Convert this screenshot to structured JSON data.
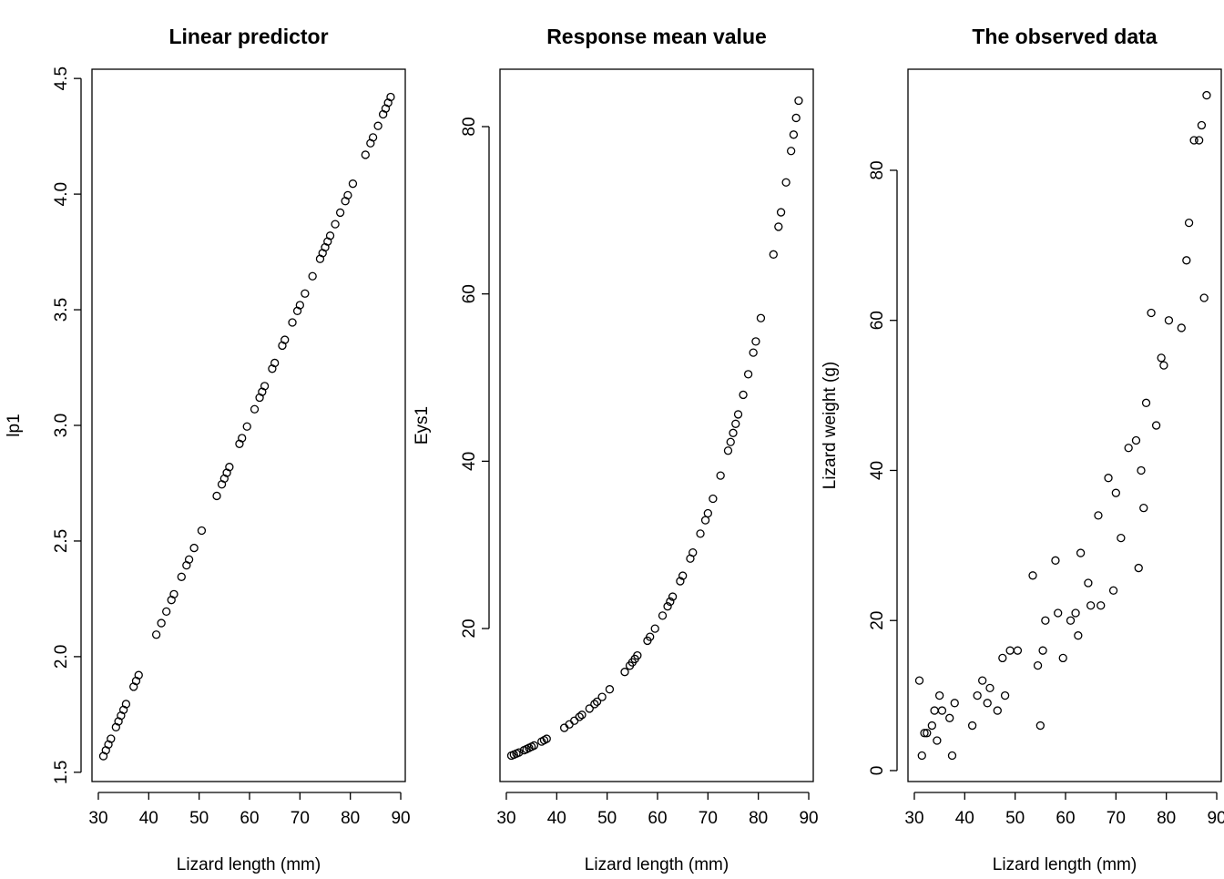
{
  "chart_data": [
    {
      "type": "scatter",
      "title": "Linear predictor",
      "xlabel": "Lizard length (mm)",
      "ylabel": "lp1",
      "x": [
        31,
        31.5,
        32,
        32.5,
        33.5,
        34,
        34.5,
        35,
        35.5,
        37,
        37.5,
        38,
        41.5,
        42.5,
        43.5,
        44.5,
        45,
        46.5,
        47.5,
        48,
        49,
        50.5,
        53.5,
        54.5,
        55,
        55.5,
        56,
        58,
        58.5,
        59.5,
        61,
        62,
        62.5,
        63,
        64.5,
        65,
        66.5,
        67,
        68.5,
        69.5,
        70,
        71,
        72.5,
        74,
        74.5,
        75,
        75.5,
        76,
        77,
        78,
        79,
        79.5,
        80.5,
        83,
        84,
        84.5,
        85.5,
        86.5,
        87,
        87.5,
        88
      ],
      "values": [
        1.57,
        1.595,
        1.62,
        1.645,
        1.695,
        1.72,
        1.745,
        1.77,
        1.795,
        1.87,
        1.895,
        1.92,
        2.095,
        2.145,
        2.195,
        2.245,
        2.27,
        2.345,
        2.395,
        2.42,
        2.47,
        2.545,
        2.695,
        2.745,
        2.77,
        2.795,
        2.82,
        2.92,
        2.945,
        2.995,
        3.07,
        3.12,
        3.145,
        3.17,
        3.245,
        3.27,
        3.345,
        3.37,
        3.445,
        3.495,
        3.52,
        3.57,
        3.645,
        3.72,
        3.745,
        3.77,
        3.795,
        3.82,
        3.87,
        3.92,
        3.97,
        3.995,
        4.045,
        4.17,
        4.22,
        4.245,
        4.295,
        4.345,
        4.37,
        4.395,
        4.42
      ],
      "xlim": [
        28.74,
        90.9
      ],
      "ylim": [
        1.46,
        4.54
      ],
      "xticks": [
        30,
        40,
        50,
        60,
        70,
        80,
        90
      ],
      "yticks": [
        1.5,
        {
          "value": 2,
          "label": "2.0"
        },
        2.5,
        {
          "value": 3,
          "label": "3.0"
        },
        3.5,
        {
          "value": 4,
          "label": "4.0"
        },
        4.5
      ]
    },
    {
      "type": "scatter",
      "title": "Response mean value",
      "xlabel": "Lizard length (mm)",
      "ylabel": "Eys1",
      "x": [
        31,
        31.5,
        32,
        32.5,
        33.5,
        34,
        34.5,
        35,
        35.5,
        37,
        37.5,
        38,
        41.5,
        42.5,
        43.5,
        44.5,
        45,
        46.5,
        47.5,
        48,
        49,
        50.5,
        53.5,
        54.5,
        55,
        55.5,
        56,
        58,
        58.5,
        59.5,
        61,
        62,
        62.5,
        63,
        64.5,
        65,
        66.5,
        67,
        68.5,
        69.5,
        70,
        71,
        72.5,
        74,
        74.5,
        75,
        75.5,
        76,
        77,
        78,
        79,
        79.5,
        80.5,
        83,
        84,
        84.5,
        85.5,
        86.5,
        87,
        87.5,
        88
      ],
      "values": [
        4.81,
        4.93,
        5.05,
        5.18,
        5.45,
        5.58,
        5.73,
        5.87,
        6.02,
        6.49,
        6.65,
        6.82,
        8.13,
        8.54,
        8.98,
        9.44,
        9.68,
        10.43,
        10.97,
        11.25,
        11.82,
        12.74,
        14.81,
        15.56,
        15.96,
        16.36,
        16.78,
        18.54,
        19.01,
        19.99,
        21.54,
        22.65,
        23.22,
        23.81,
        25.66,
        26.31,
        28.36,
        29.08,
        31.34,
        32.95,
        33.78,
        35.52,
        38.28,
        41.26,
        42.3,
        43.38,
        44.47,
        45.6,
        47.94,
        50.4,
        52.98,
        54.32,
        57.11,
        64.72,
        68.03,
        69.76,
        73.33,
        77.09,
        79.04,
        81.04,
        83.1
      ],
      "xlim": [
        28.74,
        90.9
      ],
      "ylim": [
        1.71,
        86.86
      ],
      "xticks": [
        30,
        40,
        50,
        60,
        70,
        80,
        90
      ],
      "yticks": [
        20,
        40,
        60,
        80
      ]
    },
    {
      "type": "scatter",
      "title": "The observed data",
      "xlabel": "Lizard length (mm)",
      "ylabel": "Lizard weight (g)",
      "x": [
        31,
        31.5,
        32,
        32.5,
        33.5,
        34,
        34.5,
        35,
        35.5,
        37,
        37.5,
        38,
        41.5,
        42.5,
        43.5,
        44.5,
        45,
        46.5,
        47.5,
        48,
        49,
        50.5,
        53.5,
        54.5,
        55,
        55.5,
        56,
        58,
        58.5,
        59.5,
        61,
        62,
        62.5,
        63,
        64.5,
        65,
        66.5,
        67,
        68.5,
        69.5,
        70,
        71,
        72.5,
        74,
        74.5,
        75,
        75.5,
        76,
        77,
        78,
        79,
        79.5,
        80.5,
        83,
        84,
        84.5,
        85.5,
        86.5,
        87,
        87.5,
        88
      ],
      "values": [
        12,
        2,
        5,
        5,
        6,
        8,
        4,
        10,
        8,
        7,
        2,
        9,
        6,
        10,
        12,
        9,
        11,
        8,
        15,
        10,
        16,
        16,
        26,
        14,
        6,
        16,
        20,
        28,
        21,
        15,
        20,
        21,
        18,
        29,
        25,
        22,
        34,
        22,
        39,
        24,
        37,
        31,
        43,
        44,
        27,
        40,
        35,
        49,
        61,
        46,
        55,
        54,
        60,
        59,
        68,
        73,
        84,
        84,
        86,
        63,
        90
      ],
      "xlim": [
        28.74,
        90.9
      ],
      "ylim": [
        -1.46,
        93.47
      ],
      "xticks": [
        30,
        40,
        50,
        60,
        70,
        80,
        90
      ],
      "yticks": [
        0,
        20,
        40,
        60,
        80
      ]
    }
  ]
}
